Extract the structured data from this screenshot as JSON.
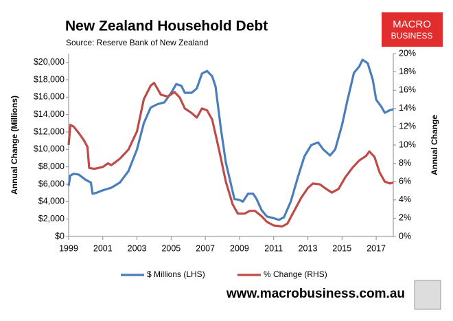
{
  "chart_data": {
    "type": "line",
    "title": "New Zealand Household Debt",
    "subtitle": "Source: Reserve Bank of New Zealand",
    "ylabel": "Annual Change (Millions)",
    "y2label": "Annual Change",
    "xlim": [
      1999,
      2018
    ],
    "xticks": [
      1999,
      2001,
      2003,
      2005,
      2007,
      2009,
      2011,
      2013,
      2015,
      2017
    ],
    "ylim": [
      0,
      21000
    ],
    "yticks": [
      {
        "value": 0,
        "label": "$0"
      },
      {
        "value": 2000,
        "label": "$2,000"
      },
      {
        "value": 4000,
        "label": "$4,000"
      },
      {
        "value": 6000,
        "label": "$6,000"
      },
      {
        "value": 8000,
        "label": "$8,000"
      },
      {
        "value": 10000,
        "label": "$10,000"
      },
      {
        "value": 12000,
        "label": "$12,000"
      },
      {
        "value": 14000,
        "label": "$14,000"
      },
      {
        "value": 16000,
        "label": "$16,000"
      },
      {
        "value": 18000,
        "label": "$18,000"
      },
      {
        "value": 20000,
        "label": "$20,000"
      }
    ],
    "y2lim": [
      0,
      20
    ],
    "y2ticks": [
      {
        "value": 0,
        "label": "0%"
      },
      {
        "value": 2,
        "label": "2%"
      },
      {
        "value": 4,
        "label": "4%"
      },
      {
        "value": 6,
        "label": "6%"
      },
      {
        "value": 8,
        "label": "8%"
      },
      {
        "value": 10,
        "label": "10%"
      },
      {
        "value": 12,
        "label": "12%"
      },
      {
        "value": 14,
        "label": "14%"
      },
      {
        "value": 16,
        "label": "16%"
      },
      {
        "value": 18,
        "label": "18%"
      },
      {
        "value": 20,
        "label": "20%"
      }
    ],
    "legend": "bottom",
    "series": [
      {
        "name": "$ Millions (LHS)",
        "color": "#4a7ebb",
        "axis": "y",
        "x": [
          1999.0,
          1999.1,
          1999.3,
          1999.6,
          2000.0,
          2000.3,
          2000.4,
          2000.6,
          2001.0,
          2001.5,
          2002.0,
          2002.5,
          2003.0,
          2003.4,
          2003.8,
          2004.2,
          2004.6,
          2005.0,
          2005.3,
          2005.6,
          2005.8,
          2006.2,
          2006.5,
          2006.8,
          2007.1,
          2007.4,
          2007.6,
          2007.9,
          2008.2,
          2008.5,
          2008.7,
          2009.0,
          2009.2,
          2009.5,
          2009.8,
          2010.0,
          2010.3,
          2010.6,
          2011.0,
          2011.3,
          2011.6,
          2012.0,
          2012.4,
          2012.8,
          2013.2,
          2013.6,
          2013.9,
          2014.3,
          2014.6,
          2015.0,
          2015.3,
          2015.7,
          2016.0,
          2016.2,
          2016.5,
          2016.8,
          2017.0,
          2017.3,
          2017.5,
          2017.8,
          2018.0
        ],
        "values": [
          5800,
          7000,
          7200,
          7100,
          6500,
          6200,
          4900,
          5000,
          5300,
          5600,
          6200,
          7500,
          10000,
          13000,
          14800,
          15200,
          15400,
          16500,
          17500,
          17300,
          16500,
          16500,
          17000,
          18700,
          19000,
          18400,
          17200,
          12500,
          8500,
          6000,
          4300,
          4200,
          4000,
          4900,
          4900,
          4300,
          3000,
          2300,
          2100,
          1900,
          2200,
          4000,
          6700,
          9200,
          10500,
          10800,
          10000,
          9300,
          10000,
          12800,
          15500,
          18800,
          19500,
          20300,
          19900,
          18000,
          15700,
          14900,
          14200,
          14500,
          14600
        ]
      },
      {
        "name": "% Change (RHS)",
        "color": "#be4b48",
        "axis": "y2",
        "x": [
          1999.0,
          1999.1,
          1999.3,
          1999.6,
          1999.9,
          2000.1,
          2000.2,
          2000.5,
          2001.0,
          2001.3,
          2001.5,
          2002.0,
          2002.5,
          2003.0,
          2003.4,
          2003.8,
          2004.0,
          2004.4,
          2004.8,
          2005.2,
          2005.5,
          2005.8,
          2006.2,
          2006.5,
          2006.8,
          2007.1,
          2007.4,
          2007.8,
          2008.2,
          2008.6,
          2008.9,
          2009.3,
          2009.6,
          2009.9,
          2010.3,
          2010.6,
          2011.0,
          2011.5,
          2011.8,
          2012.2,
          2012.6,
          2013.0,
          2013.3,
          2013.7,
          2014.0,
          2014.4,
          2014.8,
          2015.2,
          2015.6,
          2016.0,
          2016.4,
          2016.6,
          2016.9,
          2017.2,
          2017.5,
          2017.8,
          2018.0
        ],
        "values": [
          10.0,
          12.2,
          12.0,
          11.3,
          10.5,
          9.8,
          7.5,
          7.4,
          7.6,
          8.0,
          7.8,
          8.5,
          9.5,
          11.5,
          15.0,
          16.5,
          16.8,
          15.5,
          15.3,
          15.8,
          15.2,
          14.0,
          13.5,
          13.0,
          14.0,
          13.8,
          12.8,
          9.5,
          6.0,
          3.5,
          2.5,
          2.5,
          2.8,
          2.8,
          2.2,
          1.6,
          1.2,
          1.1,
          1.4,
          2.8,
          4.2,
          5.3,
          5.8,
          5.7,
          5.3,
          4.8,
          5.2,
          6.5,
          7.5,
          8.3,
          8.8,
          9.3,
          8.7,
          7.0,
          6.0,
          5.8,
          5.9
        ]
      }
    ]
  },
  "logo": {
    "line1": "MACRO",
    "line2": "BUSINESS"
  },
  "footer": "www.macrobusiness.com.au"
}
